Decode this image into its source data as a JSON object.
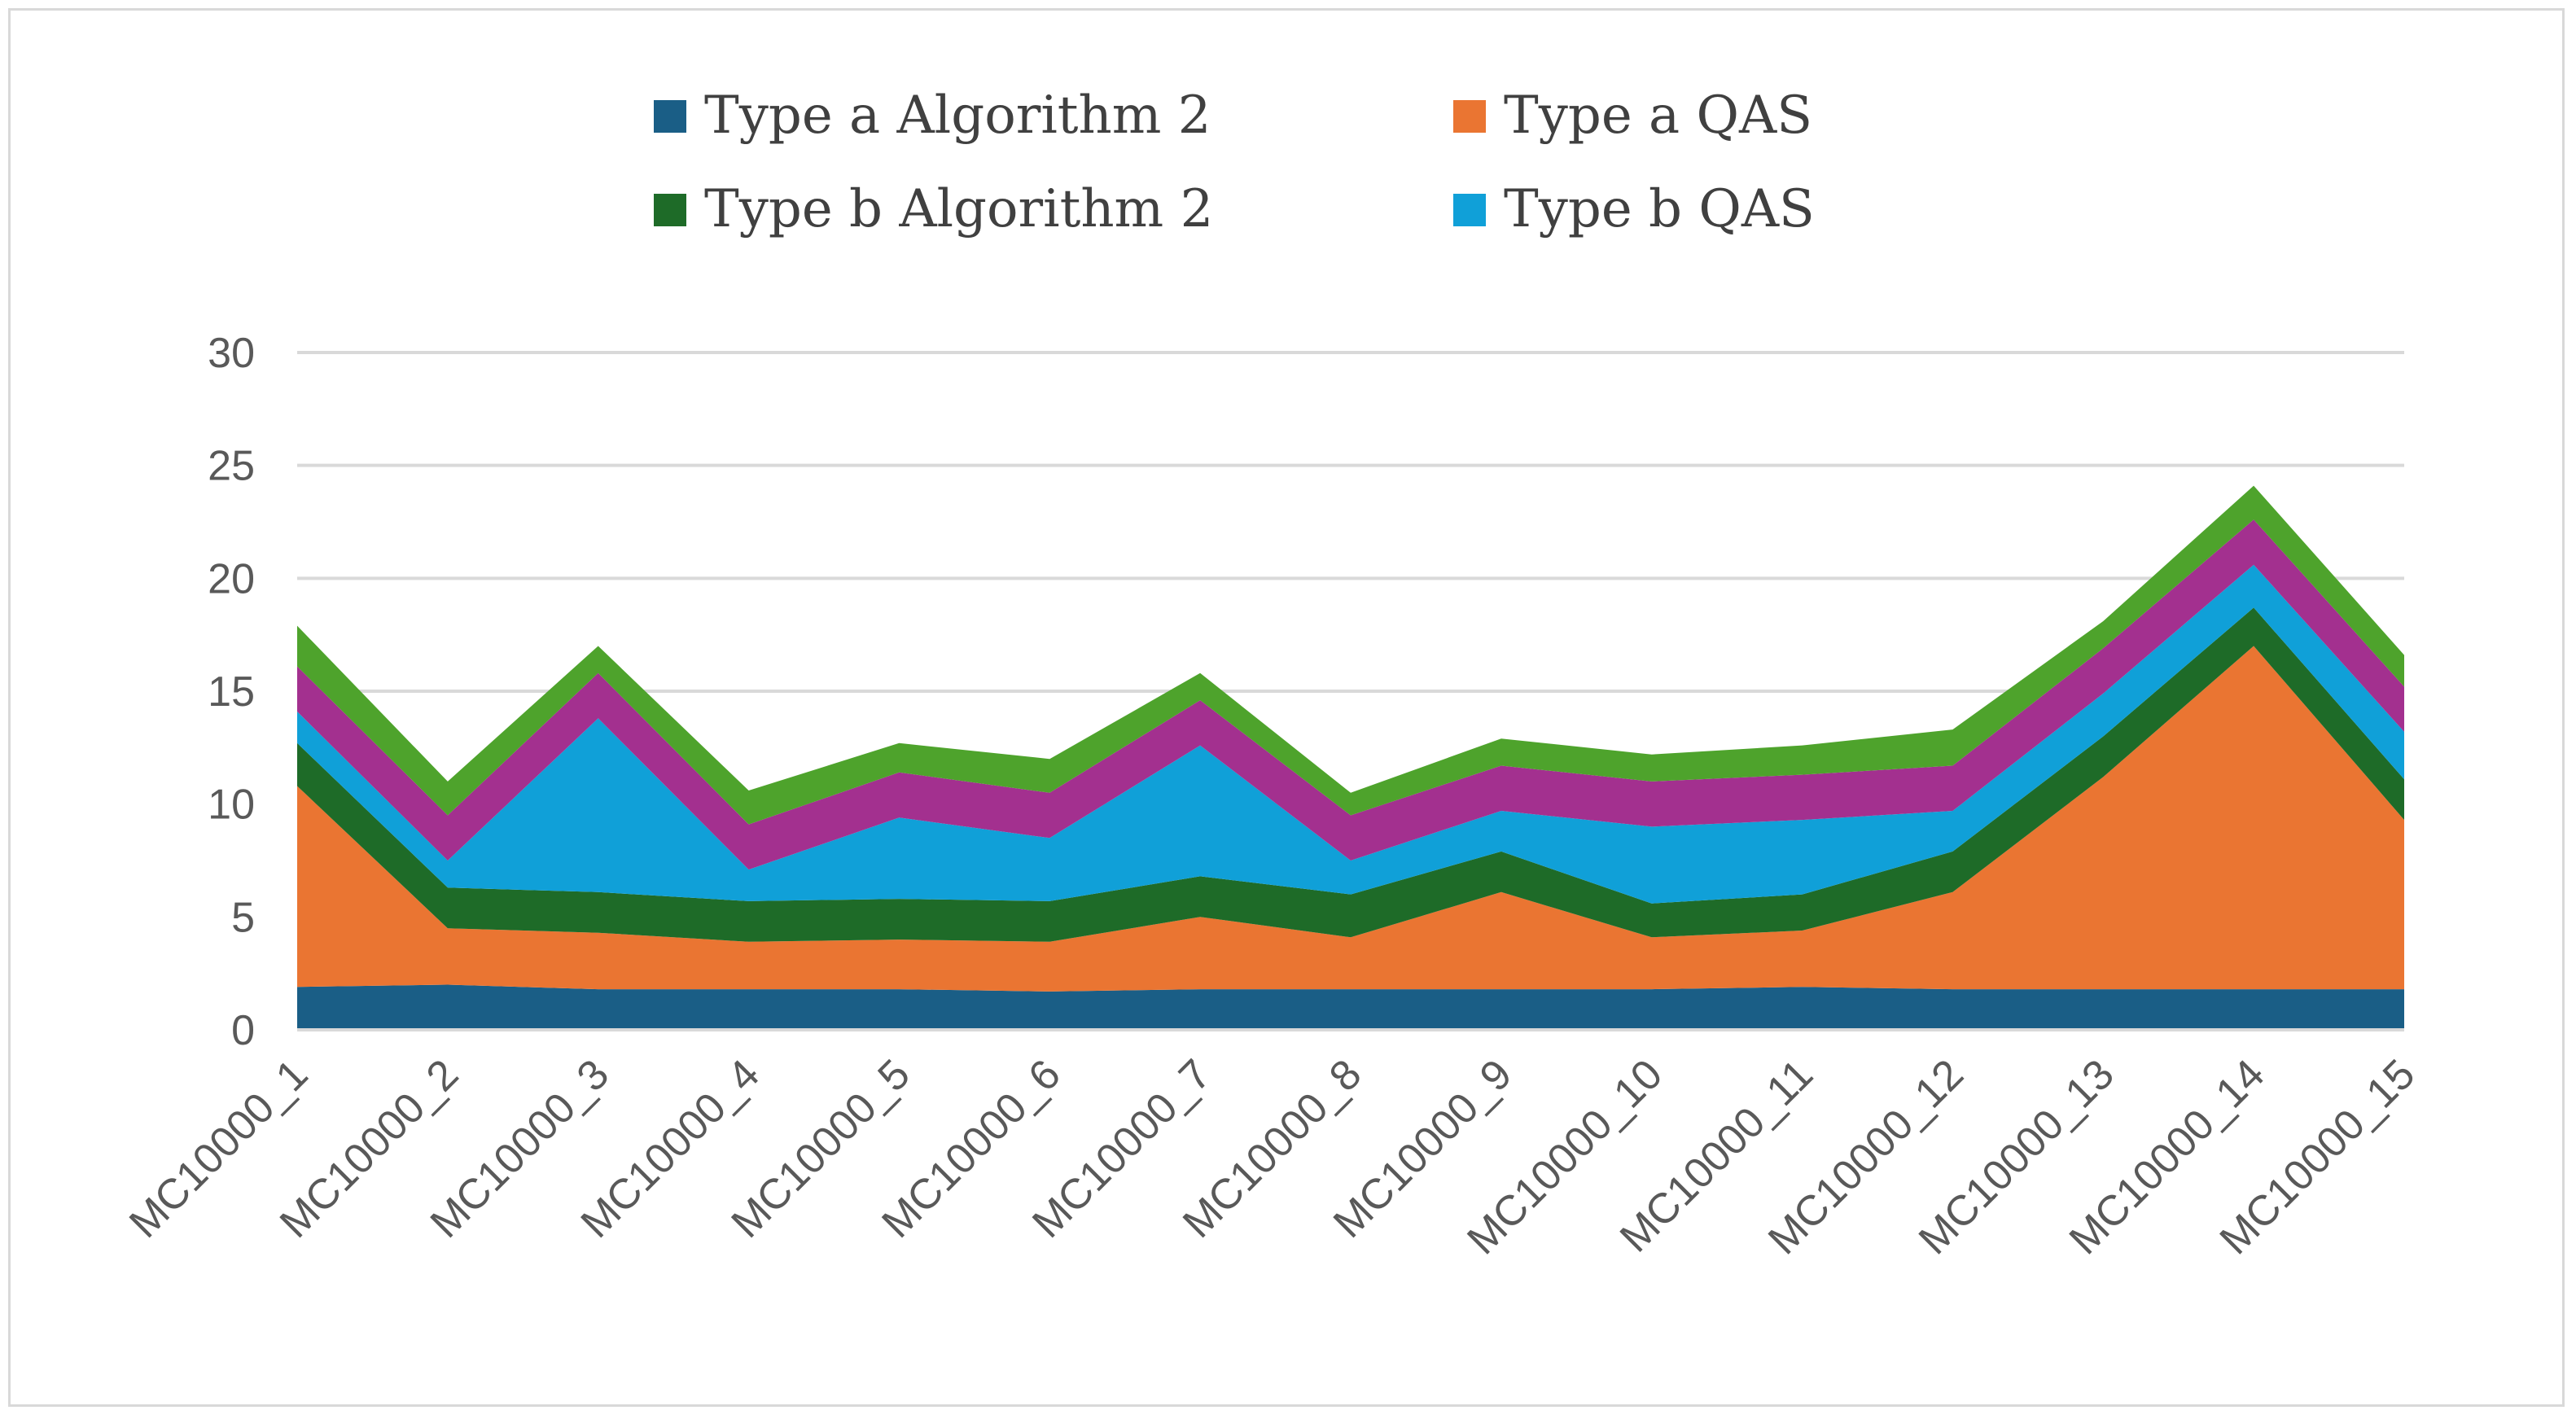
{
  "chart_data": {
    "type": "area",
    "stacked": true,
    "categories": [
      "MC10000_1",
      "MC10000_2",
      "MC10000_3",
      "MC10000_4",
      "MC10000_5",
      "MC10000_6",
      "MC10000_7",
      "MC10000_8",
      "MC10000_9",
      "MC10000_10",
      "MC10000_11",
      "MC10000_12",
      "MC10000_13",
      "MC10000_14",
      "MC10000_15"
    ],
    "series": [
      {
        "name": "Type a Algorithm 2",
        "color": "#1a5e86",
        "in_legend": true,
        "values": [
          1.9,
          2.0,
          1.8,
          1.8,
          1.8,
          1.7,
          1.8,
          1.8,
          1.8,
          1.8,
          1.9,
          1.8,
          1.8,
          1.8,
          1.8
        ]
      },
      {
        "name": "Type a QAS",
        "color": "#ea7532",
        "in_legend": true,
        "values": [
          8.9,
          2.5,
          2.5,
          2.1,
          2.2,
          2.2,
          3.2,
          2.3,
          4.3,
          2.3,
          2.5,
          4.3,
          9.4,
          15.2,
          7.5
        ]
      },
      {
        "name": "Type b Algorithm 2",
        "color": "#1e6b28",
        "in_legend": true,
        "values": [
          1.9,
          1.8,
          1.8,
          1.8,
          1.8,
          1.8,
          1.8,
          1.9,
          1.8,
          1.5,
          1.6,
          1.8,
          1.8,
          1.7,
          1.8
        ]
      },
      {
        "name": "Type b QAS",
        "color": "#10a0d8",
        "in_legend": true,
        "values": [
          1.4,
          1.2,
          7.7,
          1.4,
          3.6,
          2.8,
          5.8,
          1.5,
          1.8,
          3.4,
          3.3,
          1.8,
          1.9,
          1.9,
          2.1
        ]
      },
      {
        "name": "",
        "color": "#a3308f",
        "in_legend": false,
        "values": [
          2.0,
          2.0,
          2.0,
          2.0,
          2.0,
          2.0,
          2.0,
          2.0,
          2.0,
          2.0,
          2.0,
          2.0,
          2.0,
          2.0,
          2.0
        ]
      },
      {
        "name": "",
        "color": "#4ea32c",
        "in_legend": false,
        "values": [
          1.8,
          1.5,
          1.2,
          1.5,
          1.3,
          1.5,
          1.2,
          1.0,
          1.2,
          1.2,
          1.3,
          1.6,
          1.2,
          1.5,
          1.4
        ]
      }
    ],
    "ylim": [
      0,
      30
    ],
    "yticks": [
      0,
      5,
      10,
      15,
      20,
      25,
      30
    ],
    "grid": true,
    "legend_position": "top",
    "gridline_color": "#d9d9d9",
    "axis_color": "#d9d9d9"
  }
}
